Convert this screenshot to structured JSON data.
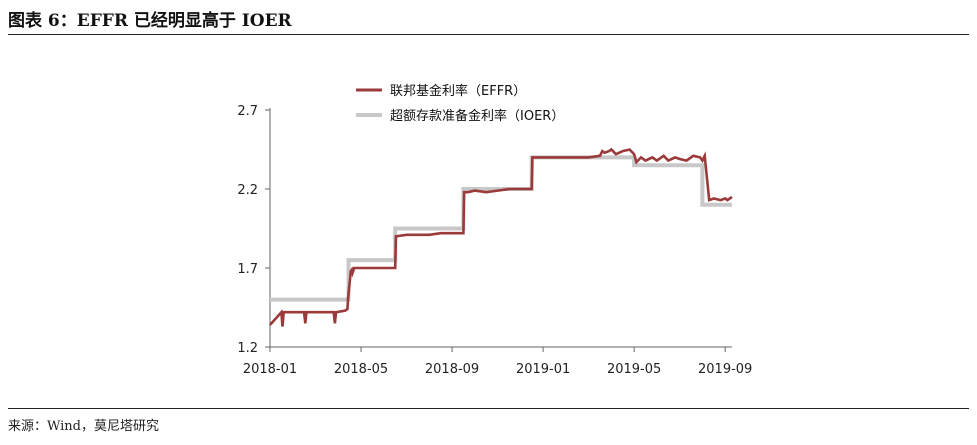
{
  "figure_title": "图表 6：EFFR 已经明显高于 IOER",
  "source_note": "来源：Wind，莫尼塔研究",
  "colors": {
    "effr": "#9b3a3a",
    "ioer": "#c8c8c8",
    "axis": "#666666"
  },
  "chart_data": {
    "type": "line",
    "title": "图表 6：EFFR 已经明显高于 IOER",
    "xlabel": "",
    "ylabel": "",
    "ylim": [
      1.2,
      2.7
    ],
    "yticks": [
      "1.2",
      "1.7",
      "2.2",
      "2.7"
    ],
    "yticks_num": [
      1.2,
      1.7,
      2.2,
      2.7
    ],
    "xlim": [
      0,
      20.3
    ],
    "xticks": [
      "2018-01",
      "2018-05",
      "2018-09",
      "2019-01",
      "2019-05",
      "2019-09"
    ],
    "xticks_num": [
      0,
      4,
      8,
      12,
      16,
      20
    ],
    "legend": [
      "联邦基金利率（EFFR）",
      "超额存款准备金利率（IOER）"
    ],
    "legend_position": "top-center",
    "series": [
      {
        "name": "联邦基金利率（EFFR）",
        "x": [
          0,
          0.5,
          0.55,
          0.6,
          1.0,
          1.5,
          1.55,
          1.6,
          2.0,
          2.3,
          2.8,
          2.85,
          2.9,
          3.3,
          3.4,
          3.43,
          3.55,
          3.6,
          3.63,
          3.7,
          4.5,
          5.0,
          5.5,
          5.5,
          5.53,
          6.0,
          6.5,
          7.0,
          7.5,
          8.0,
          8.5,
          8.53,
          8.7,
          9.0,
          9.5,
          10.0,
          10.5,
          11.0,
          11.5,
          11.53,
          12.0,
          12.5,
          13.0,
          13.5,
          14.0,
          14.5,
          14.6,
          14.7,
          14.9,
          15.0,
          15.2,
          15.5,
          15.8,
          16.0,
          16.1,
          16.3,
          16.5,
          16.8,
          17.0,
          17.3,
          17.5,
          17.8,
          18.0,
          18.3,
          18.6,
          18.9,
          19.0,
          19.1,
          19.3,
          19.5,
          19.8,
          20.0,
          20.1,
          20.3
        ],
        "values": [
          1.34,
          1.42,
          1.33,
          1.42,
          1.42,
          1.42,
          1.35,
          1.42,
          1.42,
          1.42,
          1.42,
          1.35,
          1.42,
          1.43,
          1.44,
          1.51,
          1.68,
          1.69,
          1.67,
          1.7,
          1.7,
          1.7,
          1.7,
          1.7,
          1.9,
          1.91,
          1.91,
          1.91,
          1.92,
          1.92,
          1.92,
          2.18,
          2.18,
          2.19,
          2.18,
          2.19,
          2.2,
          2.2,
          2.2,
          2.4,
          2.4,
          2.4,
          2.4,
          2.4,
          2.4,
          2.41,
          2.44,
          2.43,
          2.44,
          2.45,
          2.42,
          2.44,
          2.45,
          2.42,
          2.37,
          2.4,
          2.38,
          2.4,
          2.38,
          2.41,
          2.38,
          2.4,
          2.39,
          2.38,
          2.41,
          2.4,
          2.38,
          2.41,
          2.13,
          2.14,
          2.13,
          2.14,
          2.13,
          2.15
        ]
      },
      {
        "name": "超额存款准备金利率（IOER）",
        "x": [
          0,
          3.45,
          3.45,
          5.5,
          5.5,
          8.5,
          8.5,
          11.5,
          11.5,
          16.0,
          16.0,
          19.0,
          19.0,
          20.3
        ],
        "values": [
          1.5,
          1.5,
          1.75,
          1.75,
          1.95,
          1.95,
          2.2,
          2.2,
          2.4,
          2.4,
          2.35,
          2.35,
          2.1,
          2.1
        ]
      }
    ]
  }
}
